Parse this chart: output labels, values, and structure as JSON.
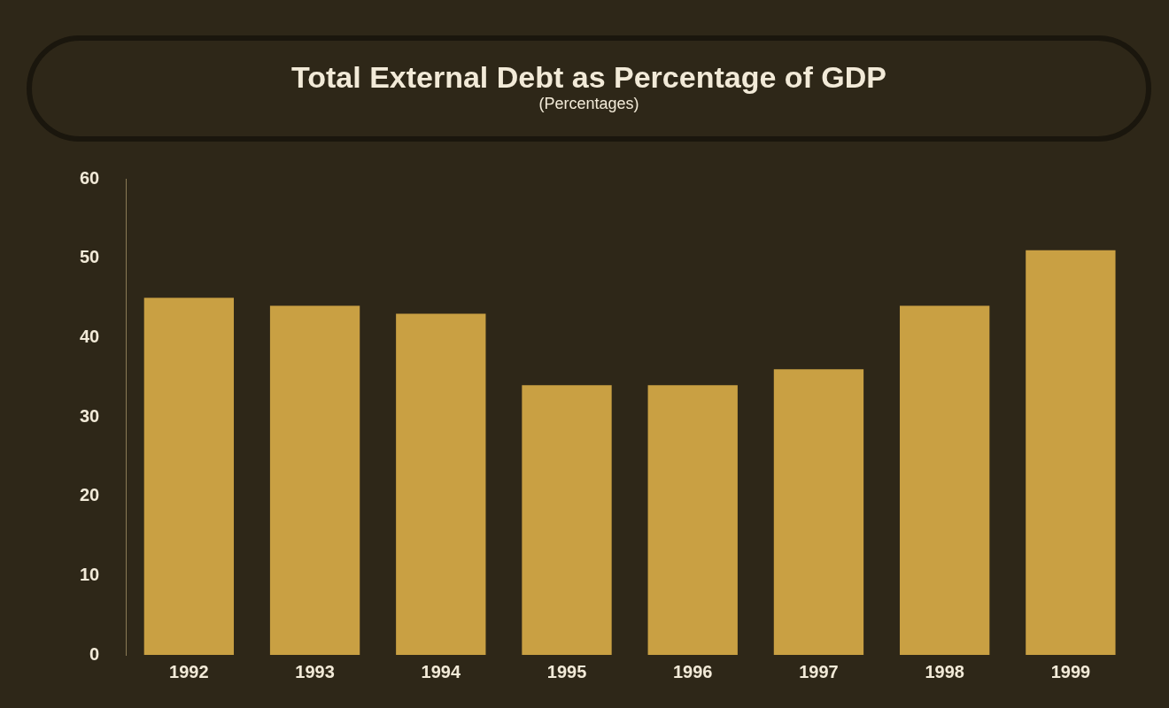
{
  "chart_data": {
    "type": "bar",
    "title": "Total External Debt as Percentage of GDP",
    "subtitle": "(Percentages)",
    "categories": [
      "1992",
      "1993",
      "1994",
      "1995",
      "1996",
      "1997",
      "1998",
      "1999"
    ],
    "values": [
      45,
      44,
      43,
      34,
      34,
      36,
      44,
      51
    ],
    "color": "#c9a043",
    "ylim": [
      0,
      60
    ],
    "yticks": [
      0,
      10,
      20,
      30,
      40,
      50,
      60
    ],
    "grid": false
  }
}
